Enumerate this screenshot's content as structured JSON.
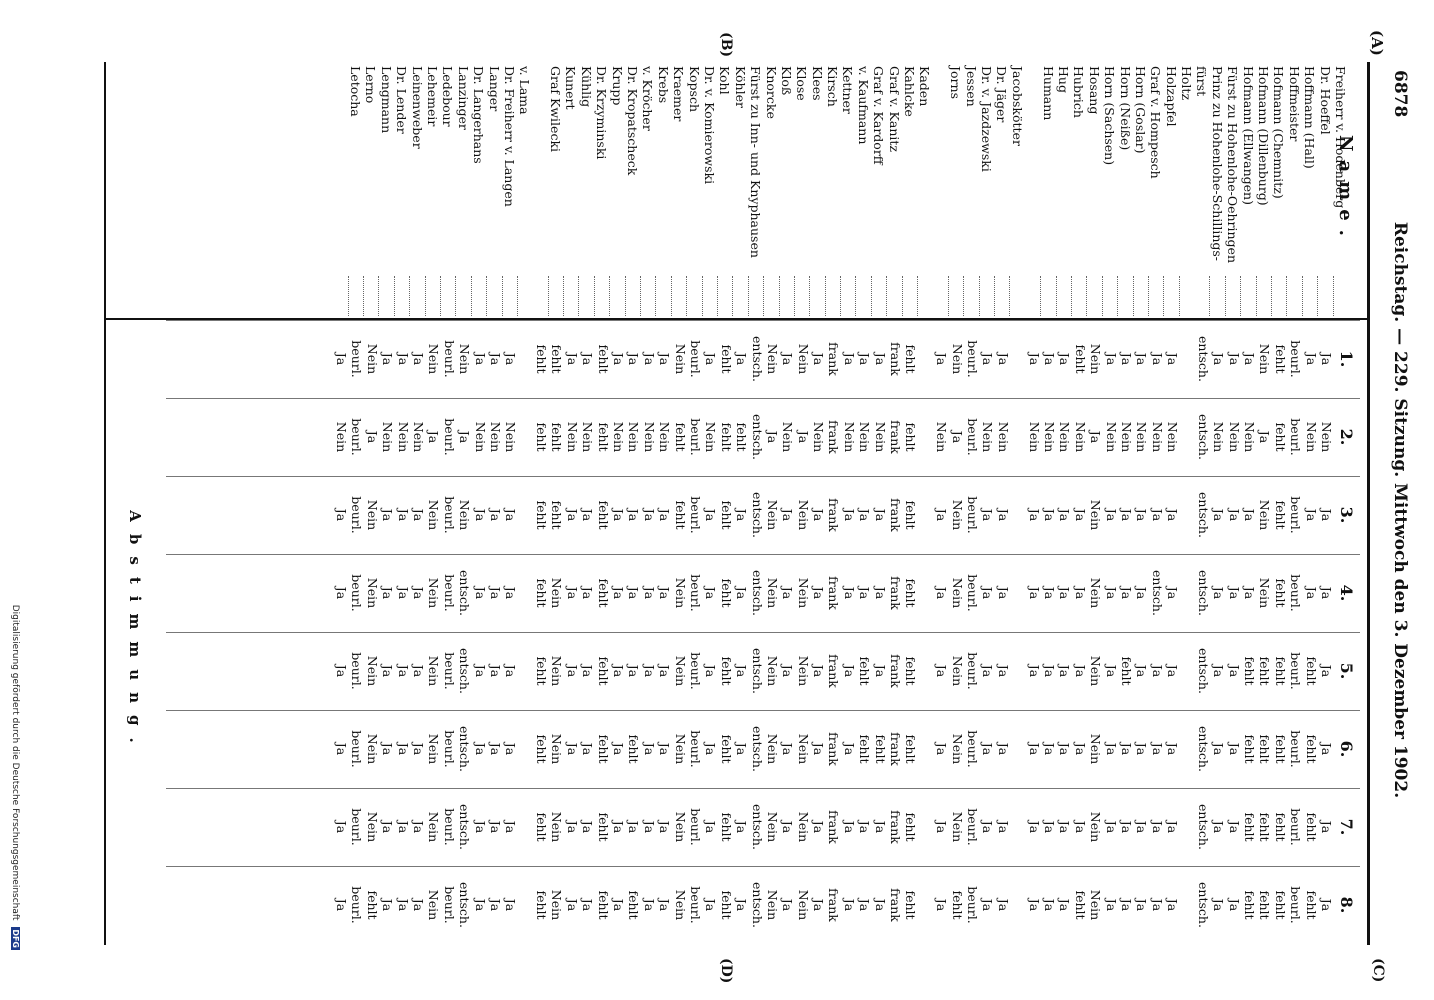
{
  "header": {
    "page_number": "6878",
    "title": "Reichstag. — 229. Sitzung. Mittwoch den 3. Dezember 1902."
  },
  "margin_markers": {
    "a": "(A)",
    "b": "(B)",
    "c": "(C)",
    "d": "(D)"
  },
  "table": {
    "name_heading": "Name.",
    "vote_heading": "Abstimmung.",
    "columns": [
      "1.",
      "2.",
      "3.",
      "4.",
      "5.",
      "6.",
      "7.",
      "8."
    ],
    "groups": [
      {
        "rows": [
          {
            "name": "Freiherr v. Hodenberg",
            "votes": [
              "Ja",
              "Nein",
              "Ja",
              "Ja",
              "Ja",
              "Ja",
              "Ja",
              "Ja"
            ]
          },
          {
            "name": "Dr. Hoeffel",
            "votes": [
              "Ja",
              "Nein",
              "Ja",
              "Ja",
              "fehlt",
              "fehlt",
              "fehlt",
              "fehlt"
            ]
          },
          {
            "name": "Hoffmann (Hall)",
            "votes": [
              "beurl.",
              "beurl.",
              "beurl.",
              "beurl.",
              "beurl.",
              "beurl.",
              "beurl.",
              "beurl."
            ]
          },
          {
            "name": "Hoffmeister",
            "votes": [
              "fehlt",
              "fehlt",
              "fehlt",
              "fehlt",
              "fehlt",
              "fehlt",
              "fehlt",
              "fehlt"
            ]
          },
          {
            "name": "Hofmann (Chemnitz)",
            "votes": [
              "Nein",
              "Ja",
              "Nein",
              "Nein",
              "fehlt",
              "fehlt",
              "fehlt",
              "fehlt"
            ]
          },
          {
            "name": "Hofmann (Dillenburg)",
            "votes": [
              "Ja",
              "Nein",
              "Ja",
              "Ja",
              "fehlt",
              "fehlt",
              "fehlt",
              "fehlt"
            ]
          },
          {
            "name": "Hofmann (Ellwangen)",
            "votes": [
              "Ja",
              "Nein",
              "Ja",
              "Ja",
              "Ja",
              "Ja",
              "Ja",
              "Ja"
            ]
          },
          {
            "name": "Fürst zu Hohenlohe-Oehringen",
            "votes": [
              "Ja",
              "Nein",
              "Ja",
              "Ja",
              "Ja",
              "Ja",
              "Ja",
              "Ja"
            ]
          },
          {
            "name": "Prinz zu Hohenlohe-Schillings-",
            "votes": [
              "entsch.",
              "entsch.",
              "entsch.",
              "entsch.",
              "entsch.",
              "entsch.",
              "entsch.",
              "entsch."
            ]
          },
          {
            "name": "fürst",
            "votes": [
              "",
              "",
              "",
              "",
              "",
              "",
              "",
              ""
            ]
          },
          {
            "name": "Holtz",
            "votes": [
              "Ja",
              "Nein",
              "Ja",
              "Ja",
              "Ja",
              "Ja",
              "Ja",
              "Ja"
            ]
          },
          {
            "name": "Holzapfel",
            "votes": [
              "Ja",
              "Nein",
              "Ja",
              "entsch.",
              "Ja",
              "Ja",
              "Ja",
              "Ja"
            ]
          },
          {
            "name": "Graf v. Hompesch",
            "votes": [
              "Ja",
              "Nein",
              "Ja",
              "Ja",
              "Ja",
              "Ja",
              "Ja",
              "Ja"
            ]
          },
          {
            "name": "Horn (Goslar)",
            "votes": [
              "Ja",
              "Nein",
              "Ja",
              "Ja",
              "fehlt",
              "Ja",
              "Ja",
              "Ja"
            ]
          },
          {
            "name": "Horn (Neiße)",
            "votes": [
              "Ja",
              "Nein",
              "Ja",
              "Ja",
              "Ja",
              "Ja",
              "Ja",
              "Ja"
            ]
          },
          {
            "name": "Horn (Sachsen)",
            "votes": [
              "Nein",
              "Ja",
              "Nein",
              "Nein",
              "Nein",
              "Nein",
              "Nein",
              "Nein"
            ]
          },
          {
            "name": "Hosang",
            "votes": [
              "fehlt",
              "Nein",
              "Ja",
              "Ja",
              "Ja",
              "Ja",
              "Ja",
              "fehlt"
            ]
          },
          {
            "name": "Hubrich",
            "votes": [
              "Ja",
              "Nein",
              "Ja",
              "Ja",
              "Ja",
              "Ja",
              "Ja",
              "Ja"
            ]
          },
          {
            "name": "Hug",
            "votes": [
              "Ja",
              "Nein",
              "Ja",
              "Ja",
              "Ja",
              "Ja",
              "Ja",
              "Ja"
            ]
          },
          {
            "name": "Humann",
            "votes": [
              "Ja",
              "Nein",
              "Ja",
              "Ja",
              "Ja",
              "Ja",
              "Ja",
              "Ja"
            ]
          }
        ]
      },
      {
        "rows": [
          {
            "name": "Jacobskötter",
            "votes": [
              "Ja",
              "Nein",
              "Ja",
              "Ja",
              "Ja",
              "Ja",
              "Ja",
              "Ja"
            ]
          },
          {
            "name": "Dr. Jäger",
            "votes": [
              "Ja",
              "Nein",
              "Ja",
              "Ja",
              "Ja",
              "Ja",
              "Ja",
              "Ja"
            ]
          },
          {
            "name": "Dr. v. Jazdzewski",
            "votes": [
              "beurl.",
              "beurl.",
              "beurl.",
              "beurl.",
              "beurl.",
              "beurl.",
              "beurl.",
              "beurl."
            ]
          },
          {
            "name": "Jessen",
            "votes": [
              "Nein",
              "Ja",
              "Nein",
              "Nein",
              "Nein",
              "Nein",
              "Nein",
              "fehlt"
            ]
          },
          {
            "name": "Jorns",
            "votes": [
              "Ja",
              "Nein",
              "Ja",
              "Ja",
              "Ja",
              "Ja",
              "Ja",
              "Ja"
            ]
          }
        ]
      },
      {
        "rows": [
          {
            "name": "Kaden",
            "votes": [
              "fehlt",
              "fehlt",
              "fehlt",
              "fehlt",
              "fehlt",
              "fehlt",
              "fehlt",
              "fehlt"
            ]
          },
          {
            "name": "Kahlcke",
            "votes": [
              "frank",
              "frank",
              "frank",
              "frank",
              "frank",
              "frank",
              "frank",
              "frank"
            ]
          },
          {
            "name": "Graf v. Kanitz",
            "votes": [
              "Ja",
              "Nein",
              "Ja",
              "Ja",
              "Ja",
              "fehlt",
              "Ja",
              "Ja"
            ]
          },
          {
            "name": "Graf v. Kardorff",
            "votes": [
              "Ja",
              "Nein",
              "Ja",
              "Ja",
              "fehlt",
              "fehlt",
              "Ja",
              "Ja"
            ]
          },
          {
            "name": "v. Kaufmann",
            "votes": [
              "Ja",
              "Nein",
              "Ja",
              "Ja",
              "Ja",
              "Ja",
              "Ja",
              "Ja"
            ]
          },
          {
            "name": "Kettner",
            "votes": [
              "frank",
              "frank",
              "frank",
              "frank",
              "frank",
              "frank",
              "frank",
              "frank"
            ]
          },
          {
            "name": "Kirsch",
            "votes": [
              "Ja",
              "Nein",
              "Ja",
              "Ja",
              "Ja",
              "Ja",
              "Ja",
              "Ja"
            ]
          },
          {
            "name": "Klees",
            "votes": [
              "Nein",
              "Ja",
              "Nein",
              "Nein",
              "Nein",
              "Nein",
              "Nein",
              "Nein"
            ]
          },
          {
            "name": "Klose",
            "votes": [
              "Ja",
              "Nein",
              "Ja",
              "Ja",
              "Ja",
              "Ja",
              "Ja",
              "Ja"
            ]
          },
          {
            "name": "Kloß",
            "votes": [
              "Nein",
              "Ja",
              "Nein",
              "Nein",
              "Nein",
              "Nein",
              "Nein",
              "Nein"
            ]
          },
          {
            "name": "Knorcke",
            "votes": [
              "entsch.",
              "entsch.",
              "entsch.",
              "entsch.",
              "entsch.",
              "entsch.",
              "entsch.",
              "entsch."
            ]
          },
          {
            "name": "Fürst zu Inn- und Knyphausen",
            "votes": [
              "Ja",
              "fehlt",
              "Ja",
              "Ja",
              "Ja",
              "Ja",
              "Ja",
              "Ja"
            ]
          },
          {
            "name": "Köhler",
            "votes": [
              "fehlt",
              "fehlt",
              "fehlt",
              "fehlt",
              "fehlt",
              "fehlt",
              "fehlt",
              "fehlt"
            ]
          },
          {
            "name": "Kohl",
            "votes": [
              "Ja",
              "Nein",
              "Ja",
              "Ja",
              "Ja",
              "Ja",
              "Ja",
              "Ja"
            ]
          },
          {
            "name": "Dr. v. Komierowski",
            "votes": [
              "beurl.",
              "beurl.",
              "beurl.",
              "beurl.",
              "beurl.",
              "beurl.",
              "beurl.",
              "beurl."
            ]
          },
          {
            "name": "Kopsch",
            "votes": [
              "Nein",
              "fehlt",
              "fehlt",
              "Nein",
              "Nein",
              "Nein",
              "Nein",
              "Nein"
            ]
          },
          {
            "name": "Kraemer",
            "votes": [
              "Ja",
              "Nein",
              "Ja",
              "Ja",
              "Ja",
              "Ja",
              "Ja",
              "Ja"
            ]
          },
          {
            "name": "Krebs",
            "votes": [
              "Ja",
              "Nein",
              "Ja",
              "Ja",
              "Ja",
              "Ja",
              "Ja",
              "Ja"
            ]
          },
          {
            "name": "v. Kröcher",
            "votes": [
              "Ja",
              "Nein",
              "Ja",
              "Ja",
              "Ja",
              "fehlt",
              "Ja",
              "fehlt"
            ]
          },
          {
            "name": "Dr. Kropatscheck",
            "votes": [
              "Ja",
              "Nein",
              "Ja",
              "Ja",
              "Ja",
              "Ja",
              "Ja",
              "Ja"
            ]
          },
          {
            "name": "Krupp",
            "votes": [
              "fehlt",
              "fehlt",
              "fehlt",
              "fehlt",
              "fehlt",
              "fehlt",
              "fehlt",
              "fehlt"
            ]
          },
          {
            "name": "Dr. Krzyminski",
            "votes": [
              "Ja",
              "Nein",
              "Ja",
              "Ja",
              "Ja",
              "Ja",
              "Ja",
              "Ja"
            ]
          },
          {
            "name": "Kühlig",
            "votes": [
              "Ja",
              "Nein",
              "Ja",
              "Ja",
              "Ja",
              "Ja",
              "Ja",
              "Ja"
            ]
          },
          {
            "name": "Kunert",
            "votes": [
              "fehlt",
              "fehlt",
              "fehlt",
              "Nein",
              "Nein",
              "Nein",
              "Nein",
              "Nein"
            ]
          },
          {
            "name": "Graf Kwilecki",
            "votes": [
              "fehlt",
              "fehlt",
              "fehlt",
              "fehlt",
              "fehlt",
              "fehlt",
              "fehlt",
              "fehlt"
            ]
          }
        ]
      },
      {
        "rows": [
          {
            "name": "v. Lama",
            "votes": [
              "Ja",
              "Nein",
              "Ja",
              "Ja",
              "Ja",
              "Ja",
              "Ja",
              "Ja"
            ]
          },
          {
            "name": "Dr. Freiherr v. Langen",
            "votes": [
              "Ja",
              "Nein",
              "Ja",
              "Ja",
              "Ja",
              "Ja",
              "Ja",
              "Ja"
            ]
          },
          {
            "name": "Langer",
            "votes": [
              "Ja",
              "Nein",
              "Ja",
              "Ja",
              "Ja",
              "Ja",
              "Ja",
              "Ja"
            ]
          },
          {
            "name": "Dr. Langerhans",
            "votes": [
              "Nein",
              "Ja",
              "Nein",
              "entsch.",
              "entsch.",
              "entsch.",
              "entsch.",
              "entsch."
            ]
          },
          {
            "name": "Lanzinger",
            "votes": [
              "beurl.",
              "beurl.",
              "beurl.",
              "beurl.",
              "beurl.",
              "beurl.",
              "beurl.",
              "beurl."
            ]
          },
          {
            "name": "Ledebour",
            "votes": [
              "Nein",
              "Ja",
              "Nein",
              "Nein",
              "Nein",
              "Nein",
              "Nein",
              "Nein"
            ]
          },
          {
            "name": "Lehemeir",
            "votes": [
              "Ja",
              "Nein",
              "Ja",
              "Ja",
              "Ja",
              "Ja",
              "Ja",
              "Ja"
            ]
          },
          {
            "name": "Leinenweber",
            "votes": [
              "Ja",
              "Nein",
              "Ja",
              "Ja",
              "Ja",
              "Ja",
              "Ja",
              "Ja"
            ]
          },
          {
            "name": "Dr. Lender",
            "votes": [
              "Ja",
              "Nein",
              "Ja",
              "Ja",
              "Ja",
              "Ja",
              "Ja",
              "Ja"
            ]
          },
          {
            "name": "Lengmann",
            "votes": [
              "Nein",
              "Ja",
              "Nein",
              "Nein",
              "Nein",
              "Nein",
              "Nein",
              "fehlt"
            ]
          },
          {
            "name": "Lerno",
            "votes": [
              "beurl.",
              "beurl.",
              "beurl.",
              "beurl.",
              "beurl.",
              "beurl.",
              "beurl.",
              "beurl."
            ]
          },
          {
            "name": "Letocha",
            "votes": [
              "Ja",
              "Nein",
              "Ja",
              "Ja",
              "Ja",
              "Ja",
              "Ja",
              "Ja"
            ]
          }
        ]
      }
    ]
  },
  "footer": {
    "credit": "Digitalisierung gefördert durch die Deutsche Forschungsgemeinschaft",
    "logo_text": "DFG"
  }
}
